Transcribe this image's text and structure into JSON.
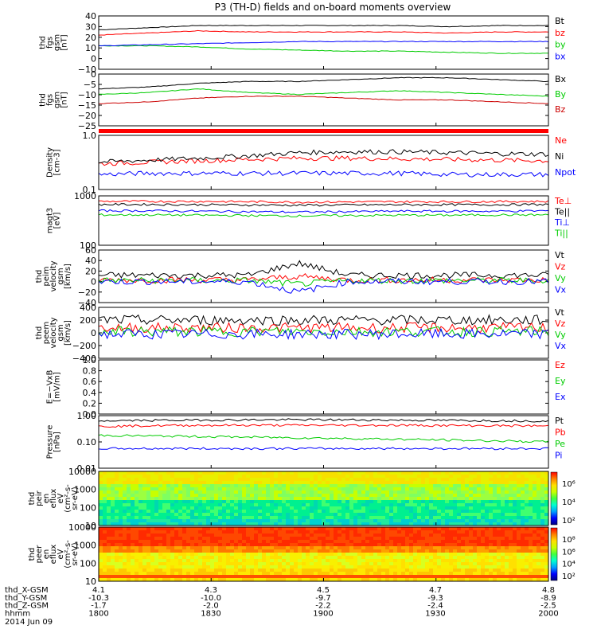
{
  "title": "P3 (TH-D) fields and on-board moments overview",
  "footer": {
    "rows": [
      {
        "label": "thd_X-GSM",
        "values": [
          "4.1",
          "4.3",
          "4.5",
          "4.7",
          "4.8"
        ]
      },
      {
        "label": "thd_Y-GSM",
        "values": [
          "-10.3",
          "-10.0",
          "-9.7",
          "-9.3",
          "-8.9"
        ]
      },
      {
        "label": "thd_Z-GSM",
        "values": [
          "-1.7",
          "-2.0",
          "-2.2",
          "-2.4",
          "-2.5"
        ]
      },
      {
        "label": "hhmm",
        "values": [
          "1800",
          "1830",
          "1900",
          "1930",
          "2000"
        ]
      }
    ],
    "date": "2014 Jun 09"
  },
  "colorbar1_labels": [
    "10⁶",
    "10⁴",
    "10²"
  ],
  "colorbar2_labels": [
    "10⁸",
    "10⁶",
    "10⁴",
    "10²"
  ],
  "chart_data": [
    {
      "type": "line",
      "ylabel": [
        "thd",
        "fgs",
        "gsm",
        "[nT]"
      ],
      "ylim": [
        -10,
        40
      ],
      "ticks": [
        "40",
        "30",
        "20",
        "10",
        "0",
        "−10"
      ],
      "series": [
        {
          "name": "Bt",
          "color": "#000000",
          "values": [
            27,
            29,
            31,
            31,
            31,
            31,
            31,
            30,
            31,
            31
          ]
        },
        {
          "name": "bz",
          "color": "#ff0000",
          "values": [
            22,
            24,
            26,
            25,
            25,
            25,
            25,
            24,
            25,
            25
          ]
        },
        {
          "name": "by",
          "color": "#00cc00",
          "values": [
            12,
            12,
            11,
            9,
            8,
            7,
            7,
            6,
            5,
            5
          ]
        },
        {
          "name": "bx",
          "color": "#0000ff",
          "values": [
            12,
            13,
            14,
            15,
            16,
            16,
            16,
            16,
            16,
            16
          ]
        }
      ]
    },
    {
      "type": "line",
      "ylabel": [
        "thd",
        "fgs",
        "gsm",
        "[nT]"
      ],
      "ylim": [
        -28,
        0
      ],
      "ticks": [
        "0",
        "−5",
        "−10",
        "−15",
        "−20",
        "−25"
      ],
      "series": [
        {
          "name": "Bx",
          "color": "#000000",
          "values": [
            -8,
            -7,
            -5,
            -4,
            -4,
            -3,
            -2,
            -2,
            -3,
            -4
          ]
        },
        {
          "name": "By",
          "color": "#00cc00",
          "values": [
            -11,
            -10,
            -8,
            -10,
            -11,
            -10,
            -9,
            -10,
            -11,
            -12
          ]
        },
        {
          "name": "Bz",
          "color": "#cc0000",
          "values": [
            -16,
            -15,
            -13,
            -12,
            -12,
            -13,
            -14,
            -14,
            -15,
            -16
          ]
        }
      ]
    },
    {
      "type": "line",
      "ylabel": [
        "Density",
        "[cm-3]"
      ],
      "yscale": "log",
      "ylim": [
        0.1,
        1.0
      ],
      "ticks": [
        "1.0",
        "0.1"
      ],
      "series": [
        {
          "name": "Ne",
          "color": "#ff0000",
          "values": [
            0.3,
            0.32,
            0.34,
            0.36,
            0.38,
            0.38,
            0.37,
            0.36,
            0.35,
            0.34
          ]
        },
        {
          "name": "Ni",
          "color": "#000000",
          "values": [
            0.32,
            0.35,
            0.38,
            0.42,
            0.48,
            0.5,
            0.5,
            0.48,
            0.46,
            0.45
          ]
        },
        {
          "name": "Npot",
          "color": "#0000ff",
          "values": [
            0.19,
            0.2,
            0.2,
            0.2,
            0.2,
            0.2,
            0.2,
            0.19,
            0.19,
            0.19
          ]
        }
      ]
    },
    {
      "type": "line",
      "ylabel": [
        "magt3",
        "[eV]"
      ],
      "yscale": "log",
      "ylim": [
        100,
        10000
      ],
      "ticks": [
        "1000",
        "100"
      ],
      "series": [
        {
          "name": "Te⊥",
          "color": "#ff0000",
          "values": [
            6000,
            6000,
            6000,
            5800,
            5600,
            5700,
            5800,
            5800,
            5900,
            6000
          ]
        },
        {
          "name": "Te||",
          "color": "#000000",
          "values": [
            4500,
            4500,
            4400,
            4300,
            4200,
            4300,
            4400,
            4400,
            4400,
            4500
          ]
        },
        {
          "name": "Ti⊥",
          "color": "#0000ff",
          "values": [
            2500,
            2500,
            2400,
            2300,
            2200,
            2300,
            2400,
            2400,
            2400,
            2500
          ]
        },
        {
          "name": "Ti||",
          "color": "#00cc00",
          "values": [
            1700,
            1700,
            1650,
            1600,
            1550,
            1600,
            1650,
            1650,
            1700,
            1700
          ]
        }
      ]
    },
    {
      "type": "line",
      "ylabel": [
        "thd",
        "peim",
        "velocity",
        "gsm",
        "[km/s]"
      ],
      "ylim": [
        -40,
        60
      ],
      "ticks": [
        "60",
        "40",
        "20",
        "0",
        "−20",
        "−40"
      ],
      "series": [
        {
          "name": "Vt",
          "color": "#000000",
          "values": [
            12,
            12,
            12,
            12,
            35,
            12,
            12,
            12,
            12,
            12
          ]
        },
        {
          "name": "Vz",
          "color": "#ff0000",
          "values": [
            3,
            3,
            3,
            3,
            10,
            3,
            3,
            3,
            3,
            3
          ]
        },
        {
          "name": "Vy",
          "color": "#00cc00",
          "values": [
            2,
            2,
            2,
            2,
            -5,
            2,
            2,
            2,
            2,
            2
          ]
        },
        {
          "name": "Vx",
          "color": "#0000ff",
          "values": [
            0,
            0,
            0,
            0,
            -20,
            0,
            0,
            0,
            0,
            0
          ]
        }
      ]
    },
    {
      "type": "line",
      "ylabel": [
        "thd",
        "peem",
        "velocity",
        "gsm",
        "[km/s]"
      ],
      "ylim": [
        -400,
        400
      ],
      "ticks": [
        "400",
        "200",
        "0",
        "−200",
        "−400"
      ],
      "series": [
        {
          "name": "Vt",
          "color": "#000000",
          "values": [
            200,
            200,
            200,
            200,
            200,
            200,
            200,
            200,
            200,
            200
          ]
        },
        {
          "name": "Vz",
          "color": "#ff0000",
          "values": [
            80,
            80,
            80,
            80,
            80,
            80,
            80,
            80,
            80,
            80
          ]
        },
        {
          "name": "Vy",
          "color": "#00cc00",
          "values": [
            20,
            20,
            20,
            20,
            20,
            20,
            20,
            20,
            20,
            20
          ]
        },
        {
          "name": "Vx",
          "color": "#0000ff",
          "values": [
            -20,
            -20,
            -20,
            -20,
            -20,
            -20,
            -20,
            -20,
            -20,
            -20
          ]
        }
      ]
    },
    {
      "type": "line",
      "ylabel": [
        "E=−VxB",
        "[mV/m]"
      ],
      "ylim": [
        0,
        1
      ],
      "ticks": [
        "1.0",
        "0.8",
        "0.6",
        "0.4",
        "0.2",
        "0.0"
      ],
      "series": [
        {
          "name": "Ez",
          "color": "#ff0000",
          "values": []
        },
        {
          "name": "Ey",
          "color": "#00cc00",
          "values": []
        },
        {
          "name": "Ex",
          "color": "#0000ff",
          "values": []
        }
      ]
    },
    {
      "type": "line",
      "ylabel": [
        "Pressure",
        "[nPa]"
      ],
      "yscale": "log",
      "ylim": [
        0.01,
        1.2
      ],
      "ticks": [
        "1.00",
        "0.10",
        "0.01"
      ],
      "series": [
        {
          "name": "Pt",
          "color": "#000000",
          "values": [
            0.75,
            0.78,
            0.8,
            0.82,
            0.83,
            0.82,
            0.8,
            0.78,
            0.76,
            0.74
          ]
        },
        {
          "name": "Pb",
          "color": "#ff0000",
          "values": [
            0.45,
            0.48,
            0.5,
            0.5,
            0.5,
            0.5,
            0.5,
            0.49,
            0.48,
            0.47
          ]
        },
        {
          "name": "Pe",
          "color": "#00cc00",
          "values": [
            0.2,
            0.19,
            0.18,
            0.17,
            0.16,
            0.15,
            0.14,
            0.13,
            0.12,
            0.11
          ]
        },
        {
          "name": "Pi",
          "color": "#0000ff",
          "values": [
            0.06,
            0.06,
            0.06,
            0.06,
            0.06,
            0.06,
            0.06,
            0.06,
            0.06,
            0.06
          ]
        }
      ]
    },
    {
      "type": "heatmap",
      "ylabel": [
        "thd",
        "peir",
        "en",
        "eflux",
        "eV",
        "(cm²-s-",
        "sr-eV)"
      ],
      "yscale": "log",
      "ylim": [
        7,
        25000
      ],
      "ticks": [
        "10000",
        "1000",
        "100",
        "10"
      ]
    },
    {
      "type": "heatmap",
      "ylabel": [
        "thd",
        "peer",
        "en",
        "eflux",
        "eV",
        "(cm²-s-",
        "sr-eV)"
      ],
      "yscale": "log",
      "ylim": [
        7,
        25000
      ],
      "ticks": [
        "10000",
        "1000",
        "100",
        "10"
      ]
    }
  ]
}
